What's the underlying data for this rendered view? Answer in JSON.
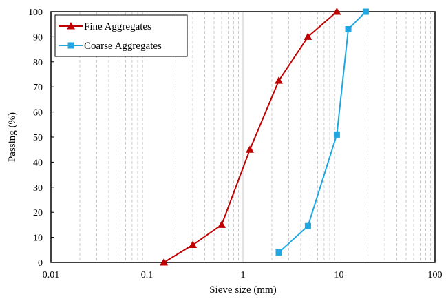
{
  "chart_data": {
    "type": "line",
    "title": "",
    "xlabel": "Sieve size (mm)",
    "ylabel": "Passing (%)",
    "xscale": "log",
    "xlim": [
      0.01,
      100
    ],
    "ylim": [
      0,
      100
    ],
    "grid": "vertical-minor-dashed-major-solid",
    "legend_position": "top-left",
    "x_tick_labels": [
      "0.01",
      "0.1",
      "1",
      "10",
      "100"
    ],
    "y_tick_labels": [
      "0",
      "10",
      "20",
      "30",
      "40",
      "50",
      "60",
      "70",
      "80",
      "90",
      "100"
    ],
    "series": [
      {
        "name": "Fine Aggregates",
        "color": "#c00000",
        "marker": "triangle",
        "x": [
          0.15,
          0.3,
          0.6,
          1.18,
          2.36,
          4.75,
          9.5
        ],
        "y": [
          0,
          7,
          15,
          45,
          72.5,
          90,
          100
        ]
      },
      {
        "name": "Coarse Aggregates",
        "color": "#1ea7e1",
        "marker": "square",
        "x": [
          2.36,
          4.75,
          9.5,
          12.5,
          19
        ],
        "y": [
          4,
          14.5,
          51,
          93,
          100
        ]
      }
    ]
  }
}
